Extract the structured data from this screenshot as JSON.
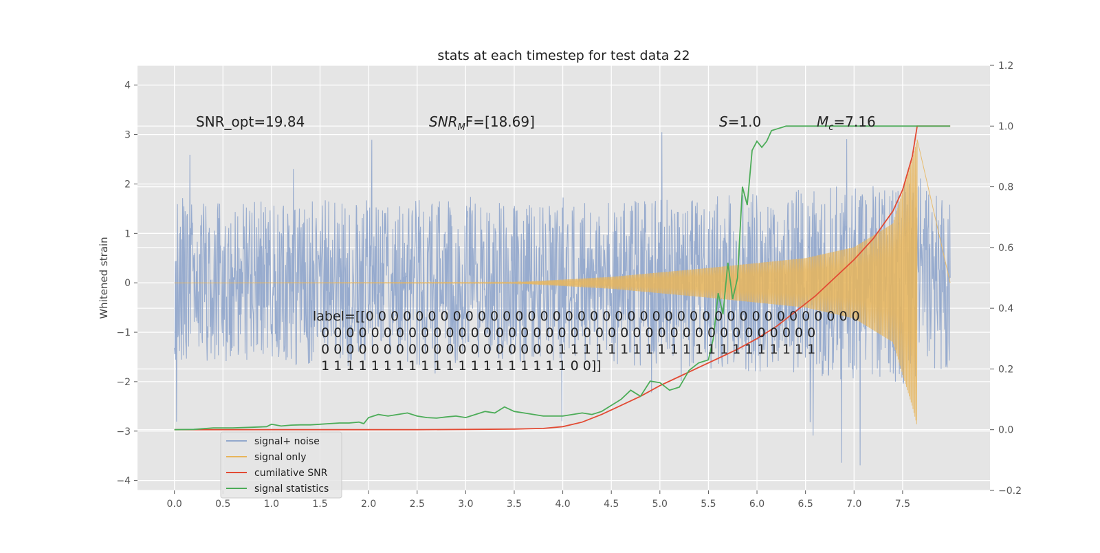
{
  "chart_data": {
    "type": "line",
    "title": "stats at each timestep for test data 22",
    "xlabel": "",
    "ylabel": "Whitened strain",
    "y2label": "",
    "xlim": [
      -0.38,
      8.4
    ],
    "ylim": [
      -4.2,
      4.4
    ],
    "y2lim": [
      -0.2,
      1.2
    ],
    "x_ticks": [
      "0.0",
      "0.5",
      "1.0",
      "1.5",
      "2.0",
      "2.5",
      "3.0",
      "3.5",
      "4.0",
      "4.5",
      "5.0",
      "5.5",
      "6.0",
      "6.5",
      "7.0",
      "7.5"
    ],
    "y_ticks": [
      "4",
      "3",
      "2",
      "1",
      "0",
      "−1",
      "−2",
      "−3",
      "−4"
    ],
    "y2_ticks": [
      "1.2",
      "1.0",
      "0.8",
      "0.6",
      "0.4",
      "0.2",
      "0.0",
      "−0.2"
    ],
    "grid": true,
    "legend_position": "lower-left",
    "annotations": {
      "snr_opt": "SNR_opt=19.84",
      "snr_mf_label": "SNR",
      "snr_mf_sub": "M",
      "snr_mf_rest": "F=[18.69]",
      "s_label": "S",
      "s_value": "=1.0",
      "mc_label": "M",
      "mc_sub": "c",
      "mc_value": "=7.16"
    },
    "label_lines": [
      "label=[[0 0 0 0 0 0 0 0 0 0 0 0 0 0 0 0 0 0 0 0 0 0 0 0 0 0 0 0 0 0 0 0 0 0 0 0 0 0 0 0",
      "  0 0 0 0 0 0 0 0 0 0 0 0 0 0 0 0 0 0 0 0 0 0 0 0 0 0 0 0 0 0 0 0 0 0 0 0 0 0 0 0",
      "  0 0 0 0 0 0 0 0 0 0 0 0 0 0 0 0 0 0 0 1 1 1 1 1 1 1 1 1 1 1 1 1 1 1 1 1 1 1 1 1",
      "  1 1 1 1 1 1 1 1 1 1 1 1 1 1 1 1 1 1 1 1 0 0]]"
    ],
    "series": [
      {
        "name": "signal+ noise",
        "color": "#92a8cc",
        "axis": "left",
        "kind": "noise",
        "x_range": [
          0.0,
          7.99
        ],
        "envelope_at": [
          [
            0.0,
            1.6
          ],
          [
            2.0,
            1.7
          ],
          [
            4.0,
            1.6
          ],
          [
            6.0,
            1.8
          ],
          [
            7.5,
            2.1
          ],
          [
            7.99,
            1.7
          ]
        ]
      },
      {
        "name": "signal only",
        "color": "#e8b55a",
        "axis": "left",
        "kind": "chirp",
        "x_range": [
          0.0,
          7.65
        ],
        "envelope_at": [
          [
            0.0,
            0.0
          ],
          [
            3.5,
            0.01
          ],
          [
            4.5,
            0.12
          ],
          [
            5.5,
            0.3
          ],
          [
            6.5,
            0.5
          ],
          [
            7.0,
            0.72
          ],
          [
            7.4,
            1.2
          ],
          [
            7.6,
            2.5
          ],
          [
            7.65,
            2.9
          ]
        ]
      },
      {
        "name": "cumilative SNR",
        "color": "#e24a33",
        "axis": "right",
        "x": [
          0.0,
          0.5,
          1.0,
          1.5,
          2.0,
          2.5,
          3.0,
          3.5,
          3.8,
          4.0,
          4.2,
          4.4,
          4.6,
          4.8,
          5.0,
          5.2,
          5.4,
          5.6,
          5.8,
          6.0,
          6.2,
          6.4,
          6.6,
          6.8,
          7.0,
          7.2,
          7.4,
          7.5,
          7.6,
          7.65,
          7.99
        ],
        "y": [
          0.0,
          0.0,
          0.0,
          0.0,
          0.0,
          0.0,
          0.001,
          0.002,
          0.004,
          0.01,
          0.025,
          0.05,
          0.08,
          0.11,
          0.145,
          0.175,
          0.205,
          0.235,
          0.265,
          0.3,
          0.34,
          0.39,
          0.44,
          0.5,
          0.56,
          0.63,
          0.72,
          0.79,
          0.9,
          1.0,
          1.0
        ]
      },
      {
        "name": "signal statistics",
        "color": "#348abd",
        "axis": "right",
        "x": [
          0.0,
          0.2,
          0.4,
          0.6,
          0.8,
          0.95,
          1.0,
          1.1,
          1.2,
          1.3,
          1.4,
          1.5,
          1.6,
          1.7,
          1.8,
          1.9,
          1.95,
          2.0,
          2.1,
          2.2,
          2.3,
          2.4,
          2.5,
          2.6,
          2.7,
          2.8,
          2.9,
          3.0,
          3.1,
          3.2,
          3.3,
          3.4,
          3.5,
          3.6,
          3.7,
          3.8,
          3.9,
          4.0,
          4.1,
          4.2,
          4.3,
          4.4,
          4.5,
          4.6,
          4.7,
          4.8,
          4.9,
          5.0,
          5.1,
          5.2,
          5.3,
          5.4,
          5.5,
          5.55,
          5.6,
          5.65,
          5.7,
          5.75,
          5.8,
          5.85,
          5.9,
          5.95,
          6.0,
          6.05,
          6.1,
          6.15,
          6.2,
          6.25,
          6.3,
          6.4,
          6.5,
          7.0,
          7.5,
          7.99
        ],
        "y": [
          0.0,
          0.001,
          0.006,
          0.006,
          0.008,
          0.01,
          0.018,
          0.012,
          0.015,
          0.016,
          0.016,
          0.018,
          0.02,
          0.022,
          0.022,
          0.025,
          0.02,
          0.04,
          0.05,
          0.045,
          0.05,
          0.055,
          0.045,
          0.04,
          0.038,
          0.042,
          0.045,
          0.04,
          0.05,
          0.06,
          0.055,
          0.075,
          0.06,
          0.055,
          0.05,
          0.045,
          0.045,
          0.045,
          0.05,
          0.055,
          0.05,
          0.06,
          0.08,
          0.1,
          0.13,
          0.11,
          0.16,
          0.155,
          0.13,
          0.14,
          0.195,
          0.22,
          0.23,
          0.3,
          0.45,
          0.38,
          0.55,
          0.43,
          0.5,
          0.8,
          0.74,
          0.92,
          0.95,
          0.93,
          0.95,
          0.985,
          0.99,
          0.995,
          1.0,
          1.0,
          1.0,
          1.0,
          1.0,
          1.0
        ]
      }
    ]
  }
}
